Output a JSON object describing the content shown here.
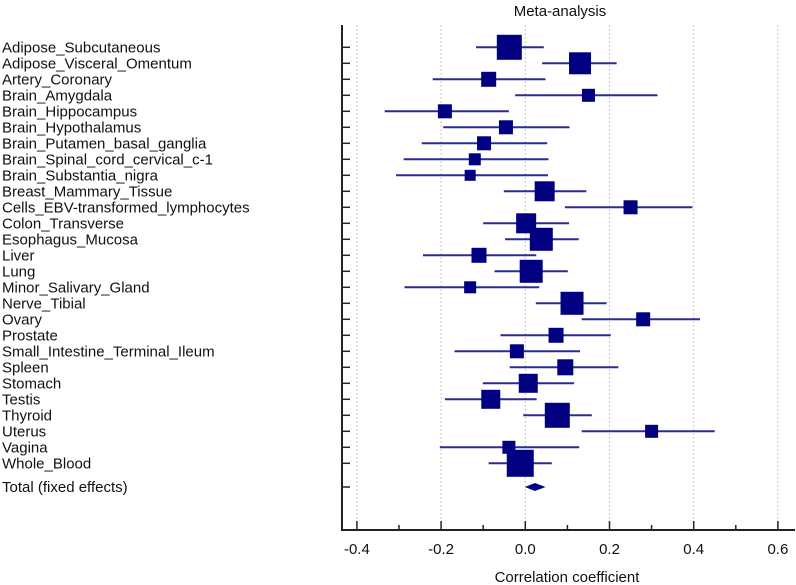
{
  "chart_data": {
    "type": "forest",
    "title": "Meta-analysis",
    "xlabel": "Correlation coefficient",
    "xlim": [
      -0.45,
      0.65
    ],
    "xticks": [
      -0.4,
      -0.2,
      0.0,
      0.2,
      0.4,
      0.6
    ],
    "xtick_labels": [
      "-0.4",
      "-0.2",
      "0.0",
      "0.2",
      "0.4",
      "0.6"
    ],
    "grid": "vertical dotted at major ticks",
    "marker_color": "#000080",
    "ci_color": "#2a2a9a",
    "studies": [
      {
        "label": "Adipose_Subcutaneous",
        "r": -0.038,
        "lo": -0.117,
        "hi": 0.044,
        "weight": 25
      },
      {
        "label": "Adipose_Visceral_Omentum",
        "r": 0.13,
        "lo": 0.04,
        "hi": 0.217,
        "weight": 22
      },
      {
        "label": "Artery_Coronary",
        "r": -0.087,
        "lo": -0.22,
        "hi": 0.048,
        "weight": 15
      },
      {
        "label": "Brain_Amygdala",
        "r": 0.15,
        "lo": -0.024,
        "hi": 0.314,
        "weight": 13
      },
      {
        "label": "Brain_Hippocampus",
        "r": -0.191,
        "lo": -0.334,
        "hi": -0.039,
        "weight": 14
      },
      {
        "label": "Brain_Hypothalamus",
        "r": -0.046,
        "lo": -0.195,
        "hi": 0.105,
        "weight": 14
      },
      {
        "label": "Brain_Putamen_basal_ganglia",
        "r": -0.098,
        "lo": -0.246,
        "hi": 0.052,
        "weight": 14
      },
      {
        "label": "Brain_Spinal_cord_cervical_c-1",
        "r": -0.12,
        "lo": -0.289,
        "hi": 0.055,
        "weight": 12
      },
      {
        "label": "Brain_Substantia_nigra",
        "r": -0.131,
        "lo": -0.307,
        "hi": 0.054,
        "weight": 11
      },
      {
        "label": "Breast_Mammary_Tissue",
        "r": 0.046,
        "lo": -0.051,
        "hi": 0.145,
        "weight": 20
      },
      {
        "label": "Cells_EBV-transformed_lymphocytes",
        "r": 0.25,
        "lo": 0.094,
        "hi": 0.397,
        "weight": 14
      },
      {
        "label": "Colon_Transverse",
        "r": 0.002,
        "lo": -0.1,
        "hi": 0.104,
        "weight": 20
      },
      {
        "label": "Esophagus_Mucosa",
        "r": 0.038,
        "lo": -0.048,
        "hi": 0.127,
        "weight": 23
      },
      {
        "label": "Liver",
        "r": -0.11,
        "lo": -0.243,
        "hi": 0.026,
        "weight": 15
      },
      {
        "label": "Lung",
        "r": 0.014,
        "lo": -0.073,
        "hi": 0.101,
        "weight": 23
      },
      {
        "label": "Minor_Salivary_Gland",
        "r": -0.131,
        "lo": -0.287,
        "hi": 0.033,
        "weight": 12
      },
      {
        "label": "Nerve_Tibial",
        "r": 0.111,
        "lo": 0.025,
        "hi": 0.193,
        "weight": 23
      },
      {
        "label": "Ovary",
        "r": 0.28,
        "lo": 0.134,
        "hi": 0.415,
        "weight": 14
      },
      {
        "label": "Prostate",
        "r": 0.073,
        "lo": -0.059,
        "hi": 0.203,
        "weight": 15
      },
      {
        "label": "Small_Intestine_Terminal_Ileum",
        "r": -0.02,
        "lo": -0.168,
        "hi": 0.13,
        "weight": 14
      },
      {
        "label": "Spleen",
        "r": 0.095,
        "lo": -0.037,
        "hi": 0.221,
        "weight": 16
      },
      {
        "label": "Stomach",
        "r": 0.007,
        "lo": -0.101,
        "hi": 0.116,
        "weight": 19
      },
      {
        "label": "Testis",
        "r": -0.082,
        "lo": -0.191,
        "hi": 0.027,
        "weight": 19
      },
      {
        "label": "Thyroid",
        "r": 0.076,
        "lo": -0.005,
        "hi": 0.158,
        "weight": 25
      },
      {
        "label": "Uterus",
        "r": 0.3,
        "lo": 0.134,
        "hi": 0.45,
        "weight": 13
      },
      {
        "label": "Vagina",
        "r": -0.039,
        "lo": -0.203,
        "hi": 0.128,
        "weight": 13
      },
      {
        "label": "Whole_Blood",
        "r": -0.012,
        "lo": -0.087,
        "hi": 0.063,
        "weight": 27
      }
    ],
    "total": {
      "label": "Total (fixed effects)",
      "r": 0.023,
      "lo": -0.001,
      "hi": 0.048
    }
  }
}
